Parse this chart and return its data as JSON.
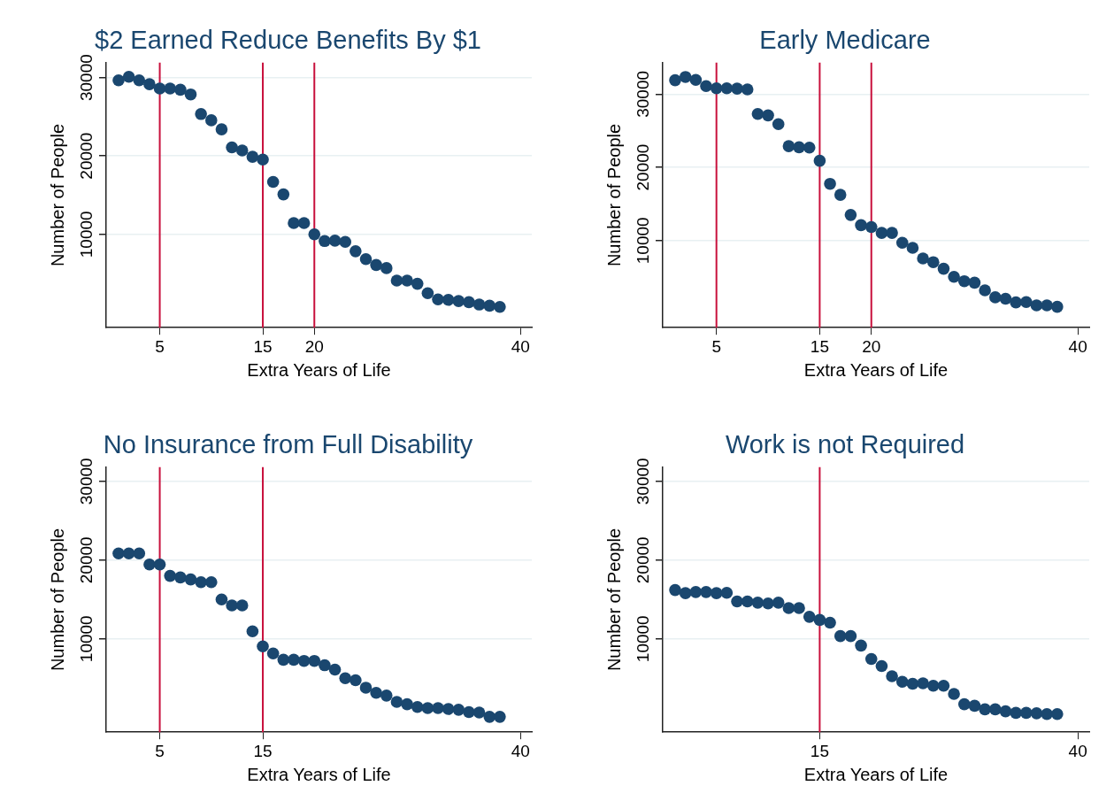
{
  "chart_data": [
    {
      "type": "scatter",
      "title": "$2 Earned Reduce Benefits By $1",
      "xlabel": "Extra Years of Life",
      "ylabel": "Number of People",
      "marker": "circle",
      "grid": "y",
      "x": [
        1,
        2,
        3,
        4,
        5,
        6,
        7,
        8,
        9,
        10,
        11,
        12,
        13,
        14,
        15,
        16,
        17,
        18,
        19,
        20,
        21,
        22,
        23,
        24,
        25,
        26,
        27,
        28,
        29,
        30,
        31,
        32,
        33,
        34,
        35,
        36,
        37,
        38
      ],
      "series": [
        {
          "color": "#1a476f",
          "values": [
            29650,
            30100,
            29650,
            29150,
            28600,
            28600,
            28450,
            27850,
            25350,
            24550,
            23400,
            21100,
            20700,
            19900,
            19550,
            16700,
            15100,
            11450,
            11450,
            10000,
            9150,
            9200,
            9050,
            7850,
            6850,
            6100,
            5700,
            4100,
            4100,
            3700,
            2500,
            1700,
            1650,
            1500,
            1350,
            1050,
            900,
            750
          ]
        }
      ],
      "xlim": [
        -0.2,
        41.1
      ],
      "xticks": [
        5,
        15,
        20,
        40
      ],
      "ylim": [
        -1900,
        31900
      ],
      "yticks": [
        10000,
        20000,
        30000
      ],
      "ref_lines": [
        {
          "axis": "x",
          "value": 5,
          "color": "#c8103c"
        },
        {
          "axis": "x",
          "value": 15,
          "color": "#c8103c"
        },
        {
          "axis": "x",
          "value": 20,
          "color": "#c8103c"
        }
      ]
    },
    {
      "type": "scatter",
      "title": "Early Medicare",
      "xlabel": "Extra Years of Life",
      "ylabel": "Number of People",
      "marker": "circle",
      "grid": "y",
      "x": [
        1,
        2,
        3,
        4,
        5,
        6,
        7,
        8,
        9,
        10,
        11,
        12,
        13,
        14,
        15,
        16,
        17,
        18,
        19,
        20,
        21,
        22,
        23,
        24,
        25,
        26,
        27,
        28,
        29,
        30,
        31,
        32,
        33,
        34,
        35,
        36,
        37,
        38
      ],
      "series": [
        {
          "color": "#1a476f",
          "values": [
            31900,
            32350,
            31950,
            31100,
            30800,
            30800,
            30750,
            30650,
            27300,
            27100,
            25900,
            22900,
            22750,
            22700,
            20900,
            17750,
            16250,
            13500,
            12100,
            11850,
            11050,
            11050,
            9700,
            9000,
            7550,
            7050,
            6150,
            5050,
            4450,
            4250,
            3200,
            2250,
            2050,
            1550,
            1600,
            1150,
            1150,
            950
          ]
        }
      ],
      "xlim": [
        -0.2,
        41.1
      ],
      "xticks": [
        5,
        15,
        20,
        40
      ],
      "ylim": [
        -1900,
        34300
      ],
      "yticks": [
        10000,
        20000,
        30000
      ],
      "ref_lines": [
        {
          "axis": "x",
          "value": 5,
          "color": "#c8103c"
        },
        {
          "axis": "x",
          "value": 15,
          "color": "#c8103c"
        },
        {
          "axis": "x",
          "value": 20,
          "color": "#c8103c"
        }
      ]
    },
    {
      "type": "scatter",
      "title": "No Insurance from Full Disability",
      "xlabel": "Extra Years of Life",
      "ylabel": "Number of People",
      "marker": "circle",
      "grid": "y",
      "x": [
        1,
        2,
        3,
        4,
        5,
        6,
        7,
        8,
        9,
        10,
        11,
        12,
        13,
        14,
        15,
        16,
        17,
        18,
        19,
        20,
        21,
        22,
        23,
        24,
        25,
        26,
        27,
        28,
        29,
        30,
        31,
        32,
        33,
        34,
        35,
        36,
        37,
        38
      ],
      "series": [
        {
          "color": "#1a476f",
          "values": [
            20850,
            20850,
            20850,
            19450,
            19450,
            18000,
            17800,
            17550,
            17200,
            17200,
            15000,
            14250,
            14250,
            10950,
            9050,
            8150,
            7350,
            7350,
            7200,
            7200,
            6650,
            6100,
            5000,
            4750,
            3800,
            3150,
            2800,
            2000,
            1700,
            1350,
            1200,
            1200,
            1100,
            1000,
            700,
            650,
            100,
            100
          ]
        }
      ],
      "xlim": [
        -0.2,
        41.1
      ],
      "xticks": [
        5,
        15,
        40
      ],
      "ylim": [
        -1850,
        31800
      ],
      "yticks": [
        10000,
        20000,
        30000
      ],
      "ref_lines": [
        {
          "axis": "x",
          "value": 5,
          "color": "#c8103c"
        },
        {
          "axis": "x",
          "value": 15,
          "color": "#c8103c"
        }
      ]
    },
    {
      "type": "scatter",
      "title": "Work is not Required",
      "xlabel": "Extra Years of Life",
      "ylabel": "Number of People",
      "marker": "circle",
      "grid": "y",
      "x": [
        1,
        2,
        3,
        4,
        5,
        6,
        7,
        8,
        9,
        10,
        11,
        12,
        13,
        14,
        15,
        16,
        17,
        18,
        19,
        20,
        21,
        22,
        23,
        24,
        25,
        26,
        27,
        28,
        29,
        30,
        31,
        32,
        33,
        34,
        35,
        36,
        37,
        38
      ],
      "series": [
        {
          "color": "#1a476f",
          "values": [
            16200,
            15800,
            15950,
            15950,
            15800,
            15850,
            14750,
            14750,
            14600,
            14500,
            14600,
            13900,
            13900,
            12800,
            12400,
            12050,
            10350,
            10350,
            9150,
            7450,
            6550,
            5250,
            4550,
            4300,
            4350,
            4050,
            4050,
            3000,
            1700,
            1500,
            1050,
            1050,
            800,
            600,
            600,
            550,
            450,
            450
          ]
        }
      ],
      "xlim": [
        -0.2,
        41.1
      ],
      "xticks": [
        15,
        40
      ],
      "ylim": [
        -1850,
        31800
      ],
      "yticks": [
        10000,
        20000,
        30000
      ],
      "ref_lines": [
        {
          "axis": "x",
          "value": 15,
          "color": "#c8103c"
        }
      ]
    }
  ]
}
